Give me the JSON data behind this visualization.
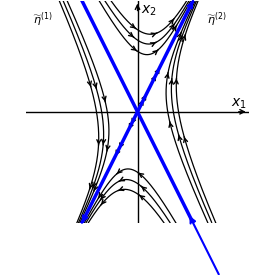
{
  "xlim": [
    -3.5,
    3.5
  ],
  "ylim": [
    -3.5,
    3.5
  ],
  "figsize": [
    2.75,
    2.75
  ],
  "dpi": 100,
  "lambda1": -2,
  "lambda2": 1,
  "v1": [
    1,
    -2
  ],
  "v2": [
    1,
    2
  ],
  "line1_color": "#0000ff",
  "line2_color": "#0000ff",
  "line_width": 2.5,
  "traj_color": "#000000",
  "xlabel": "$x_1$",
  "ylabel": "$x_2$",
  "label1": "$\\widetilde{\\eta}^{(1)}$",
  "label2": "$\\widetilde{\\eta}^{(2)}$",
  "background": "white"
}
